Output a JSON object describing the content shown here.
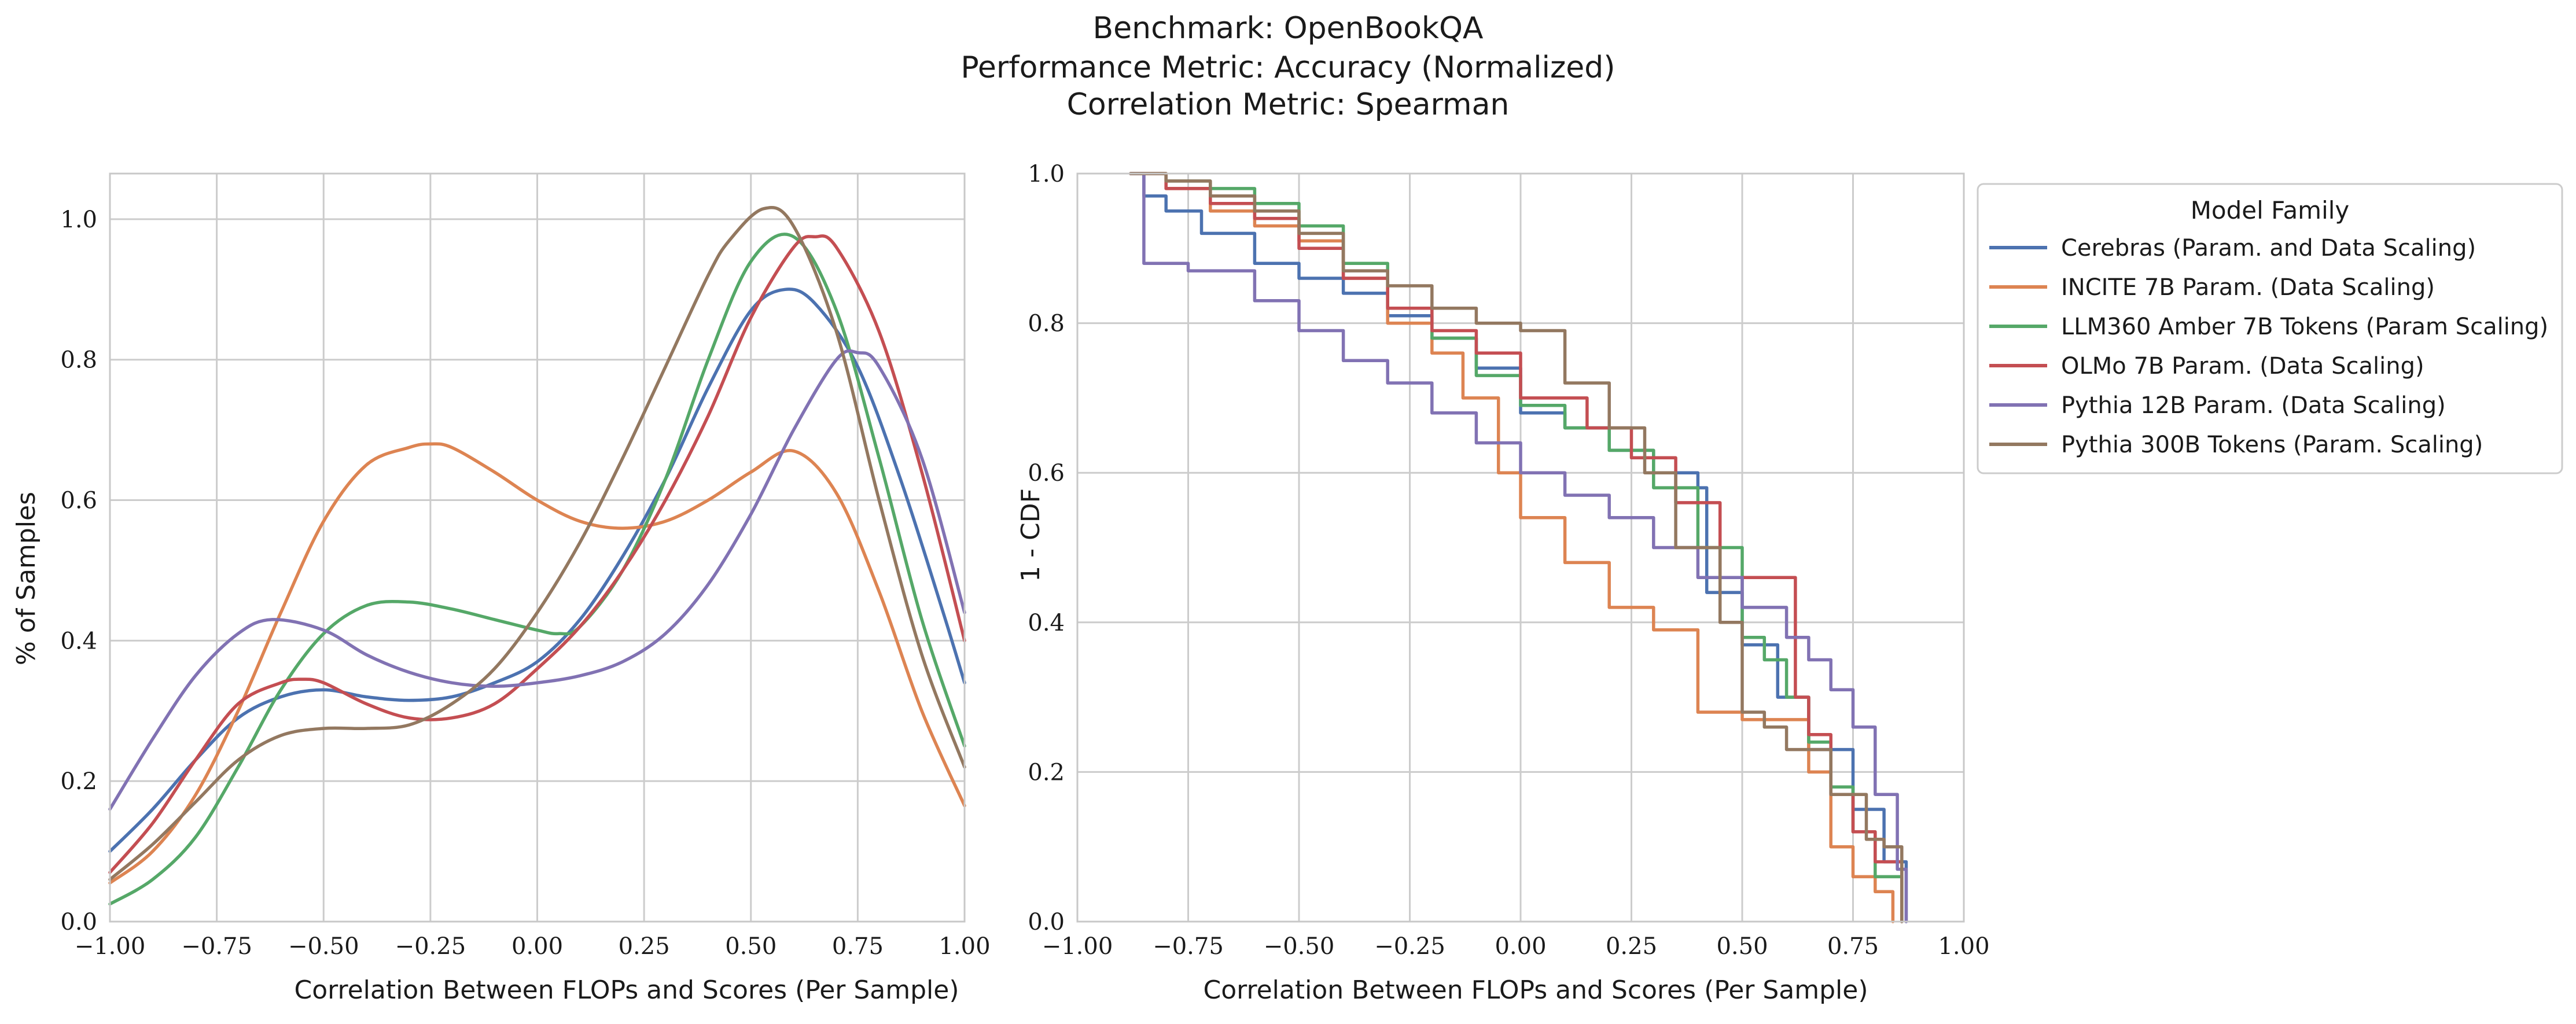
{
  "title_lines": [
    "Benchmark: OpenBookQA",
    "Performance Metric: Accuracy (Normalized)",
    "Correlation Metric: Spearman"
  ],
  "colors": {
    "Cerebras (Param. and Data Scaling)": "#4c72b0",
    "INCITE 7B Param. (Data Scaling)": "#dd8452",
    "LLM360 Amber 7B Tokens (Param Scaling)": "#55a868",
    "OLMo 7B Param. (Data Scaling)": "#c44e52",
    "Pythia 12B Param. (Data Scaling)": "#8172b3",
    "Pythia 300B Tokens (Param. Scaling)": "#937860"
  },
  "chart_data": [
    {
      "type": "line",
      "xlabel": "Correlation Between FLOPs and Scores (Per Sample)",
      "ylabel": "% of Samples",
      "xlim": [
        -1.0,
        1.0
      ],
      "ylim": [
        0.0,
        1.065
      ],
      "xticks": [
        "−1.00",
        "−0.75",
        "−0.50",
        "−0.25",
        "0.00",
        "0.25",
        "0.50",
        "0.75",
        "1.00"
      ],
      "xtick_values": [
        -1.0,
        -0.75,
        -0.5,
        -0.25,
        0.0,
        0.25,
        0.5,
        0.75,
        1.0
      ],
      "yticks": [
        "0.0",
        "0.2",
        "0.4",
        "0.6",
        "0.8",
        "1.0"
      ],
      "ytick_values": [
        0.0,
        0.2,
        0.4,
        0.6,
        0.8,
        1.0
      ],
      "grid": true,
      "series": [
        {
          "name": "Cerebras (Param. and Data Scaling)",
          "x": [
            -1.0,
            -0.9,
            -0.8,
            -0.7,
            -0.6,
            -0.5,
            -0.4,
            -0.3,
            -0.2,
            -0.1,
            0.0,
            0.1,
            0.2,
            0.3,
            0.4,
            0.5,
            0.58,
            0.65,
            0.75,
            0.85,
            0.95,
            1.0
          ],
          "y": [
            0.1,
            0.16,
            0.23,
            0.29,
            0.32,
            0.33,
            0.32,
            0.315,
            0.32,
            0.34,
            0.37,
            0.43,
            0.52,
            0.63,
            0.76,
            0.87,
            0.9,
            0.88,
            0.79,
            0.63,
            0.44,
            0.34
          ]
        },
        {
          "name": "INCITE 7B Param. (Data Scaling)",
          "x": [
            -1.0,
            -0.9,
            -0.8,
            -0.7,
            -0.6,
            -0.5,
            -0.4,
            -0.3,
            -0.25,
            -0.2,
            -0.1,
            0.0,
            0.1,
            0.2,
            0.3,
            0.4,
            0.5,
            0.6,
            0.7,
            0.8,
            0.9,
            1.0
          ],
          "y": [
            0.055,
            0.1,
            0.18,
            0.3,
            0.44,
            0.57,
            0.65,
            0.675,
            0.68,
            0.675,
            0.64,
            0.6,
            0.57,
            0.56,
            0.57,
            0.6,
            0.64,
            0.67,
            0.61,
            0.47,
            0.3,
            0.165
          ]
        },
        {
          "name": "LLM360 Amber 7B Tokens (Param Scaling)",
          "x": [
            -1.0,
            -0.9,
            -0.8,
            -0.7,
            -0.6,
            -0.5,
            -0.4,
            -0.3,
            -0.2,
            -0.1,
            0.0,
            0.05,
            0.1,
            0.2,
            0.3,
            0.4,
            0.5,
            0.6,
            0.7,
            0.8,
            0.9,
            1.0
          ],
          "y": [
            0.025,
            0.06,
            0.12,
            0.22,
            0.33,
            0.41,
            0.45,
            0.455,
            0.445,
            0.43,
            0.415,
            0.41,
            0.42,
            0.5,
            0.63,
            0.8,
            0.94,
            0.975,
            0.87,
            0.66,
            0.43,
            0.25
          ]
        },
        {
          "name": "OLMo 7B Param. (Data Scaling)",
          "x": [
            -1.0,
            -0.9,
            -0.8,
            -0.7,
            -0.6,
            -0.55,
            -0.5,
            -0.4,
            -0.3,
            -0.2,
            -0.1,
            0.0,
            0.1,
            0.2,
            0.3,
            0.4,
            0.5,
            0.6,
            0.65,
            0.7,
            0.8,
            0.9,
            1.0
          ],
          "y": [
            0.07,
            0.14,
            0.23,
            0.31,
            0.34,
            0.345,
            0.34,
            0.31,
            0.29,
            0.29,
            0.31,
            0.36,
            0.42,
            0.5,
            0.6,
            0.72,
            0.86,
            0.96,
            0.975,
            0.96,
            0.84,
            0.64,
            0.4
          ]
        },
        {
          "name": "Pythia 12B Param. (Data Scaling)",
          "x": [
            -1.0,
            -0.9,
            -0.8,
            -0.7,
            -0.62,
            -0.5,
            -0.4,
            -0.3,
            -0.2,
            -0.1,
            0.0,
            0.1,
            0.2,
            0.3,
            0.4,
            0.5,
            0.6,
            0.7,
            0.75,
            0.8,
            0.9,
            1.0
          ],
          "y": [
            0.16,
            0.26,
            0.35,
            0.41,
            0.43,
            0.415,
            0.38,
            0.355,
            0.34,
            0.335,
            0.34,
            0.35,
            0.37,
            0.41,
            0.48,
            0.58,
            0.7,
            0.8,
            0.81,
            0.79,
            0.66,
            0.44
          ]
        },
        {
          "name": "Pythia 300B Tokens (Param. Scaling)",
          "x": [
            -1.0,
            -0.9,
            -0.8,
            -0.7,
            -0.6,
            -0.5,
            -0.4,
            -0.3,
            -0.2,
            -0.1,
            0.0,
            0.1,
            0.2,
            0.3,
            0.4,
            0.45,
            0.53,
            0.6,
            0.7,
            0.8,
            0.9,
            1.0
          ],
          "y": [
            0.06,
            0.11,
            0.17,
            0.23,
            0.265,
            0.275,
            0.275,
            0.28,
            0.31,
            0.36,
            0.44,
            0.54,
            0.66,
            0.79,
            0.92,
            0.97,
            1.015,
            0.99,
            0.84,
            0.6,
            0.38,
            0.22
          ]
        }
      ]
    },
    {
      "type": "line",
      "xlabel": "Correlation Between FLOPs and Scores (Per Sample)",
      "ylabel": "1 - CDF",
      "xlim": [
        -1.0,
        1.0
      ],
      "ylim": [
        0.0,
        1.0
      ],
      "xticks": [
        "−1.00",
        "−0.75",
        "−0.50",
        "−0.25",
        "0.00",
        "0.25",
        "0.50",
        "0.75",
        "1.00"
      ],
      "xtick_values": [
        -1.0,
        -0.75,
        -0.5,
        -0.25,
        0.0,
        0.25,
        0.5,
        0.75,
        1.0
      ],
      "yticks": [
        "0.0",
        "0.2",
        "0.4",
        "0.6",
        "0.8",
        "1.0"
      ],
      "ytick_values": [
        0.0,
        0.2,
        0.4,
        0.6,
        0.8,
        1.0
      ],
      "grid": true,
      "legend": {
        "title": "Model Family",
        "placement": "outside-right"
      },
      "series": [
        {
          "name": "Cerebras (Param. and Data Scaling)",
          "x": [
            -0.88,
            -0.85,
            -0.8,
            -0.72,
            -0.6,
            -0.5,
            -0.4,
            -0.3,
            -0.2,
            -0.1,
            0.0,
            0.1,
            0.2,
            0.3,
            0.4,
            0.42,
            0.5,
            0.58,
            0.65,
            0.75,
            0.82,
            0.87
          ],
          "y": [
            1.0,
            0.97,
            0.95,
            0.92,
            0.88,
            0.86,
            0.84,
            0.81,
            0.78,
            0.74,
            0.68,
            0.66,
            0.63,
            0.6,
            0.58,
            0.44,
            0.37,
            0.3,
            0.23,
            0.15,
            0.08,
            0.0
          ]
        },
        {
          "name": "INCITE 7B Param. (Data Scaling)",
          "x": [
            -0.88,
            -0.8,
            -0.7,
            -0.6,
            -0.5,
            -0.4,
            -0.3,
            -0.2,
            -0.13,
            -0.05,
            0.0,
            0.1,
            0.2,
            0.3,
            0.4,
            0.5,
            0.6,
            0.65,
            0.7,
            0.75,
            0.8,
            0.84
          ],
          "y": [
            1.0,
            0.98,
            0.95,
            0.93,
            0.91,
            0.86,
            0.8,
            0.76,
            0.7,
            0.6,
            0.54,
            0.48,
            0.42,
            0.39,
            0.28,
            0.27,
            0.27,
            0.2,
            0.1,
            0.06,
            0.04,
            0.0
          ]
        },
        {
          "name": "LLM360 Amber 7B Tokens (Param Scaling)",
          "x": [
            -0.88,
            -0.8,
            -0.7,
            -0.6,
            -0.5,
            -0.4,
            -0.3,
            -0.2,
            -0.1,
            0.0,
            0.1,
            0.2,
            0.3,
            0.4,
            0.5,
            0.55,
            0.6,
            0.65,
            0.7,
            0.75,
            0.8,
            0.86
          ],
          "y": [
            1.0,
            0.99,
            0.98,
            0.96,
            0.93,
            0.88,
            0.82,
            0.78,
            0.73,
            0.69,
            0.66,
            0.63,
            0.58,
            0.5,
            0.38,
            0.35,
            0.3,
            0.24,
            0.18,
            0.12,
            0.06,
            0.0
          ]
        },
        {
          "name": "OLMo 7B Param. (Data Scaling)",
          "x": [
            -0.88,
            -0.8,
            -0.7,
            -0.6,
            -0.5,
            -0.4,
            -0.3,
            -0.2,
            -0.1,
            0.0,
            0.05,
            0.15,
            0.25,
            0.35,
            0.45,
            0.55,
            0.62,
            0.65,
            0.7,
            0.75,
            0.8,
            0.86
          ],
          "y": [
            1.0,
            0.98,
            0.96,
            0.94,
            0.9,
            0.86,
            0.82,
            0.79,
            0.76,
            0.7,
            0.7,
            0.66,
            0.62,
            0.56,
            0.46,
            0.46,
            0.3,
            0.25,
            0.17,
            0.12,
            0.08,
            0.0
          ]
        },
        {
          "name": "Pythia 12B Param. (Data Scaling)",
          "x": [
            -0.88,
            -0.85,
            -0.75,
            -0.6,
            -0.5,
            -0.4,
            -0.3,
            -0.2,
            -0.1,
            0.0,
            0.1,
            0.2,
            0.3,
            0.4,
            0.5,
            0.6,
            0.65,
            0.7,
            0.75,
            0.8,
            0.85,
            0.87
          ],
          "y": [
            1.0,
            0.88,
            0.87,
            0.83,
            0.79,
            0.75,
            0.72,
            0.68,
            0.64,
            0.6,
            0.57,
            0.54,
            0.5,
            0.46,
            0.42,
            0.38,
            0.35,
            0.31,
            0.26,
            0.17,
            0.07,
            0.0
          ]
        },
        {
          "name": "Pythia 300B Tokens (Param. Scaling)",
          "x": [
            -0.88,
            -0.8,
            -0.7,
            -0.6,
            -0.5,
            -0.4,
            -0.3,
            -0.2,
            -0.1,
            0.0,
            0.1,
            0.2,
            0.28,
            0.35,
            0.45,
            0.5,
            0.55,
            0.6,
            0.7,
            0.78,
            0.82,
            0.86
          ],
          "y": [
            1.0,
            0.99,
            0.97,
            0.95,
            0.92,
            0.87,
            0.85,
            0.82,
            0.8,
            0.79,
            0.72,
            0.66,
            0.6,
            0.5,
            0.4,
            0.28,
            0.26,
            0.23,
            0.17,
            0.11,
            0.1,
            0.0
          ]
        }
      ]
    }
  ]
}
